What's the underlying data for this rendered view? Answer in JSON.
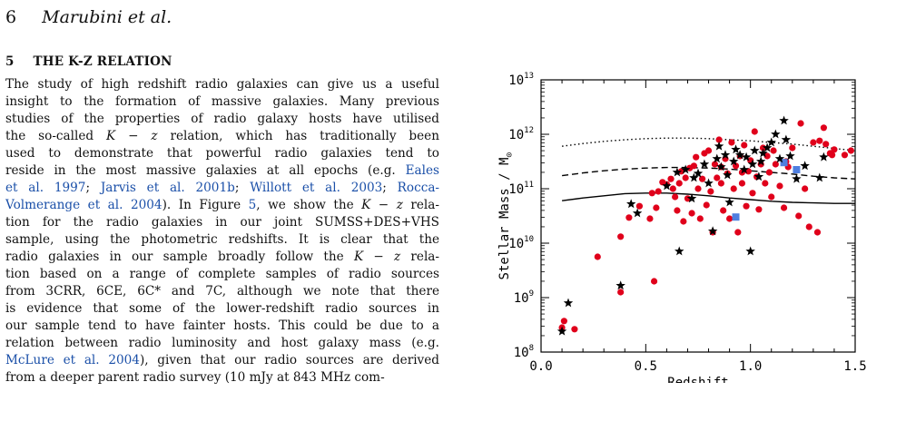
{
  "page": {
    "number": "6",
    "running_head": "Marubini et al."
  },
  "section": {
    "number": "5",
    "title": "THE K-Z RELATION"
  },
  "paragraph_lines": [
    [
      {
        "t": "The study of high redshift radio galaxies can give us a useful"
      }
    ],
    [
      {
        "t": "insight to the formation of massive galaxies. Many previous"
      }
    ],
    [
      {
        "t": "studies of the properties of radio galaxy hosts have utilised"
      }
    ],
    [
      {
        "t": "the so-called "
      },
      {
        "t": "K − z",
        "m": 1
      },
      {
        "t": " relation, which has traditionally been"
      }
    ],
    [
      {
        "t": "used to demonstrate that powerful radio galaxies tend to"
      }
    ],
    [
      {
        "t": "reside in the most massive galaxies at all epochs (e.g. "
      },
      {
        "t": "Eales",
        "c": 1
      }
    ],
    [
      {
        "t": "et al. 1997",
        "c": 1
      },
      {
        "t": "; "
      },
      {
        "t": "Jarvis et al. 2001b",
        "c": 1
      },
      {
        "t": "; "
      },
      {
        "t": "Willott et al. 2003",
        "c": 1
      },
      {
        "t": "; "
      },
      {
        "t": "Rocca-",
        "c": 1
      }
    ],
    [
      {
        "t": "Volmerange et al. 2004",
        "c": 1
      },
      {
        "t": "). In Figure "
      },
      {
        "t": "5",
        "c": 1
      },
      {
        "t": ", we show the "
      },
      {
        "t": "K − z",
        "m": 1
      },
      {
        "t": " rela-"
      }
    ],
    [
      {
        "t": "tion for the radio galaxies in our joint SUMSS+DES+VHS"
      }
    ],
    [
      {
        "t": "sample, using the photometric redshifts. It is clear that the"
      }
    ],
    [
      {
        "t": "radio galaxies in our sample broadly follow the "
      },
      {
        "t": "K − z",
        "m": 1
      },
      {
        "t": " rela-"
      }
    ],
    [
      {
        "t": "tion based on a range of complete samples of radio sources"
      }
    ],
    [
      {
        "t": "from 3CRR, 6CE, 6C* and 7C, although we note that there"
      }
    ],
    [
      {
        "t": "is evidence that some of the lower-redshift radio sources in"
      }
    ],
    [
      {
        "t": "our sample tend to have fainter hosts. This could be due to a"
      }
    ],
    [
      {
        "t": "relation between radio luminosity and host galaxy mass (e.g."
      }
    ],
    [
      {
        "t": "McLure et al. 2004",
        "c": 1
      },
      {
        "t": "), given that our radio sources are derived"
      }
    ],
    [
      {
        "t": "from a deeper parent radio survey (10 mJy at 843 MHz com-"
      }
    ]
  ],
  "colors": {
    "citation": "#1a4fa8",
    "red_points": "#e0001b",
    "blue_points": "#4f7fe0",
    "stars": "#000000"
  },
  "chart_data": {
    "type": "scatter",
    "xlabel": "Redshift",
    "ylabel": "Stellar Mass / M",
    "ylabel_sub": "⊙",
    "xlim": [
      0.0,
      1.5
    ],
    "ylim_log10": [
      8,
      13
    ],
    "y_scale": "log",
    "x_ticks": [
      {
        "v": 0.0,
        "label": "0.0"
      },
      {
        "v": 0.5,
        "label": "0.5"
      },
      {
        "v": 1.0,
        "label": "1.0"
      },
      {
        "v": 1.5,
        "label": "1.5"
      }
    ],
    "y_ticks": [
      {
        "e": 8,
        "label": "10",
        "exp": "8"
      },
      {
        "e": 9,
        "label": "10",
        "exp": "9"
      },
      {
        "e": 10,
        "label": "10",
        "exp": "10"
      },
      {
        "e": 11,
        "label": "10",
        "exp": "11"
      },
      {
        "e": 12,
        "label": "10",
        "exp": "12"
      },
      {
        "e": 13,
        "label": "10",
        "exp": "13"
      }
    ],
    "curves": [
      {
        "style": "solid",
        "x": [
          0.1,
          0.2,
          0.3,
          0.4,
          0.5,
          0.6,
          0.7,
          0.8,
          0.9,
          1.0,
          1.1,
          1.2,
          1.3,
          1.4,
          1.5
        ],
        "log_y": [
          10.78,
          10.83,
          10.87,
          10.91,
          10.92,
          10.92,
          10.9,
          10.87,
          10.83,
          10.8,
          10.77,
          10.75,
          10.74,
          10.73,
          10.73
        ]
      },
      {
        "style": "dashed",
        "x": [
          0.1,
          0.2,
          0.3,
          0.4,
          0.5,
          0.6,
          0.7,
          0.8,
          0.9,
          1.0,
          1.1,
          1.2,
          1.3,
          1.4,
          1.5
        ],
        "log_y": [
          11.24,
          11.29,
          11.33,
          11.36,
          11.38,
          11.39,
          11.39,
          11.38,
          11.36,
          11.33,
          11.3,
          11.27,
          11.23,
          11.2,
          11.18
        ]
      },
      {
        "style": "dotted",
        "x": [
          0.1,
          0.2,
          0.3,
          0.4,
          0.5,
          0.6,
          0.7,
          0.8,
          0.9,
          1.0,
          1.1,
          1.2,
          1.3,
          1.4,
          1.5
        ],
        "log_y": [
          11.78,
          11.83,
          11.87,
          11.9,
          11.92,
          11.93,
          11.93,
          11.92,
          11.9,
          11.88,
          11.85,
          11.82,
          11.78,
          11.74,
          11.7
        ]
      }
    ],
    "red_points": [
      [
        0.11,
        8.57
      ],
      [
        0.1,
        8.45
      ],
      [
        0.16,
        8.42
      ],
      [
        0.27,
        9.75
      ],
      [
        0.38,
        9.1
      ],
      [
        0.38,
        10.12
      ],
      [
        0.42,
        10.47
      ],
      [
        0.47,
        10.68
      ],
      [
        0.52,
        10.45
      ],
      [
        0.53,
        10.92
      ],
      [
        0.54,
        9.3
      ],
      [
        0.56,
        10.95
      ],
      [
        0.58,
        11.12
      ],
      [
        0.6,
        11.08
      ],
      [
        0.62,
        11.18
      ],
      [
        0.64,
        10.85
      ],
      [
        0.65,
        10.6
      ],
      [
        0.66,
        11.1
      ],
      [
        0.67,
        11.32
      ],
      [
        0.68,
        10.4
      ],
      [
        0.69,
        11.2
      ],
      [
        0.7,
        10.82
      ],
      [
        0.71,
        11.38
      ],
      [
        0.72,
        10.55
      ],
      [
        0.73,
        11.42
      ],
      [
        0.74,
        11.58
      ],
      [
        0.75,
        11.0
      ],
      [
        0.76,
        10.45
      ],
      [
        0.77,
        11.18
      ],
      [
        0.78,
        11.65
      ],
      [
        0.79,
        10.7
      ],
      [
        0.8,
        11.7
      ],
      [
        0.81,
        10.95
      ],
      [
        0.82,
        10.2
      ],
      [
        0.83,
        11.45
      ],
      [
        0.84,
        11.2
      ],
      [
        0.85,
        11.9
      ],
      [
        0.86,
        11.1
      ],
      [
        0.87,
        10.6
      ],
      [
        0.88,
        11.55
      ],
      [
        0.89,
        11.28
      ],
      [
        0.9,
        10.45
      ],
      [
        0.91,
        11.85
      ],
      [
        0.92,
        11.0
      ],
      [
        0.93,
        11.42
      ],
      [
        0.94,
        10.2
      ],
      [
        0.95,
        11.6
      ],
      [
        0.96,
        11.1
      ],
      [
        0.97,
        11.8
      ],
      [
        0.98,
        10.68
      ],
      [
        0.99,
        11.32
      ],
      [
        1.0,
        11.52
      ],
      [
        1.01,
        10.92
      ],
      [
        1.02,
        12.05
      ],
      [
        1.03,
        11.22
      ],
      [
        1.04,
        10.62
      ],
      [
        1.05,
        11.45
      ],
      [
        1.06,
        11.75
      ],
      [
        1.07,
        11.1
      ],
      [
        1.08,
        11.6
      ],
      [
        1.09,
        11.3
      ],
      [
        1.1,
        10.85
      ],
      [
        1.11,
        11.7
      ],
      [
        1.12,
        11.45
      ],
      [
        1.14,
        11.05
      ],
      [
        1.16,
        10.65
      ],
      [
        1.17,
        11.5
      ],
      [
        1.2,
        11.75
      ],
      [
        1.23,
        10.5
      ],
      [
        1.24,
        12.2
      ],
      [
        1.26,
        11.0
      ],
      [
        1.28,
        10.3
      ],
      [
        1.3,
        11.85
      ],
      [
        1.32,
        10.2
      ],
      [
        1.33,
        11.88
      ],
      [
        1.35,
        12.12
      ],
      [
        1.36,
        11.82
      ],
      [
        1.38,
        11.65
      ],
      [
        1.39,
        11.62
      ],
      [
        1.4,
        11.72
      ],
      [
        1.45,
        11.62
      ],
      [
        1.48,
        11.7
      ],
      [
        0.55,
        10.65
      ],
      [
        0.63,
        11.0
      ],
      [
        0.86,
        11.4
      ],
      [
        0.96,
        11.3
      ],
      [
        1.18,
        11.4
      ]
    ],
    "star_points": [
      [
        0.1,
        8.38
      ],
      [
        0.13,
        8.9
      ],
      [
        0.38,
        9.22
      ],
      [
        0.43,
        10.72
      ],
      [
        0.46,
        10.55
      ],
      [
        0.6,
        11.05
      ],
      [
        0.65,
        11.3
      ],
      [
        0.66,
        9.85
      ],
      [
        0.69,
        11.35
      ],
      [
        0.72,
        10.82
      ],
      [
        0.73,
        11.2
      ],
      [
        0.75,
        11.28
      ],
      [
        0.78,
        11.45
      ],
      [
        0.8,
        11.1
      ],
      [
        0.82,
        10.22
      ],
      [
        0.84,
        11.55
      ],
      [
        0.85,
        11.78
      ],
      [
        0.86,
        11.4
      ],
      [
        0.88,
        11.62
      ],
      [
        0.89,
        11.25
      ],
      [
        0.9,
        10.75
      ],
      [
        0.92,
        11.5
      ],
      [
        0.93,
        11.72
      ],
      [
        0.95,
        11.62
      ],
      [
        0.97,
        11.35
      ],
      [
        0.98,
        11.58
      ],
      [
        1.0,
        9.85
      ],
      [
        1.01,
        11.45
      ],
      [
        1.02,
        11.7
      ],
      [
        1.04,
        11.22
      ],
      [
        1.05,
        11.5
      ],
      [
        1.06,
        11.65
      ],
      [
        1.08,
        11.75
      ],
      [
        1.1,
        11.85
      ],
      [
        1.12,
        12.0
      ],
      [
        1.14,
        11.55
      ],
      [
        1.16,
        12.25
      ],
      [
        1.17,
        11.9
      ],
      [
        1.19,
        11.6
      ],
      [
        1.22,
        11.18
      ],
      [
        1.26,
        11.42
      ],
      [
        1.33,
        11.2
      ],
      [
        1.35,
        11.58
      ]
    ],
    "blue_points": [
      [
        0.93,
        10.48
      ],
      [
        1.16,
        11.48
      ],
      [
        1.22,
        11.35
      ]
    ]
  }
}
